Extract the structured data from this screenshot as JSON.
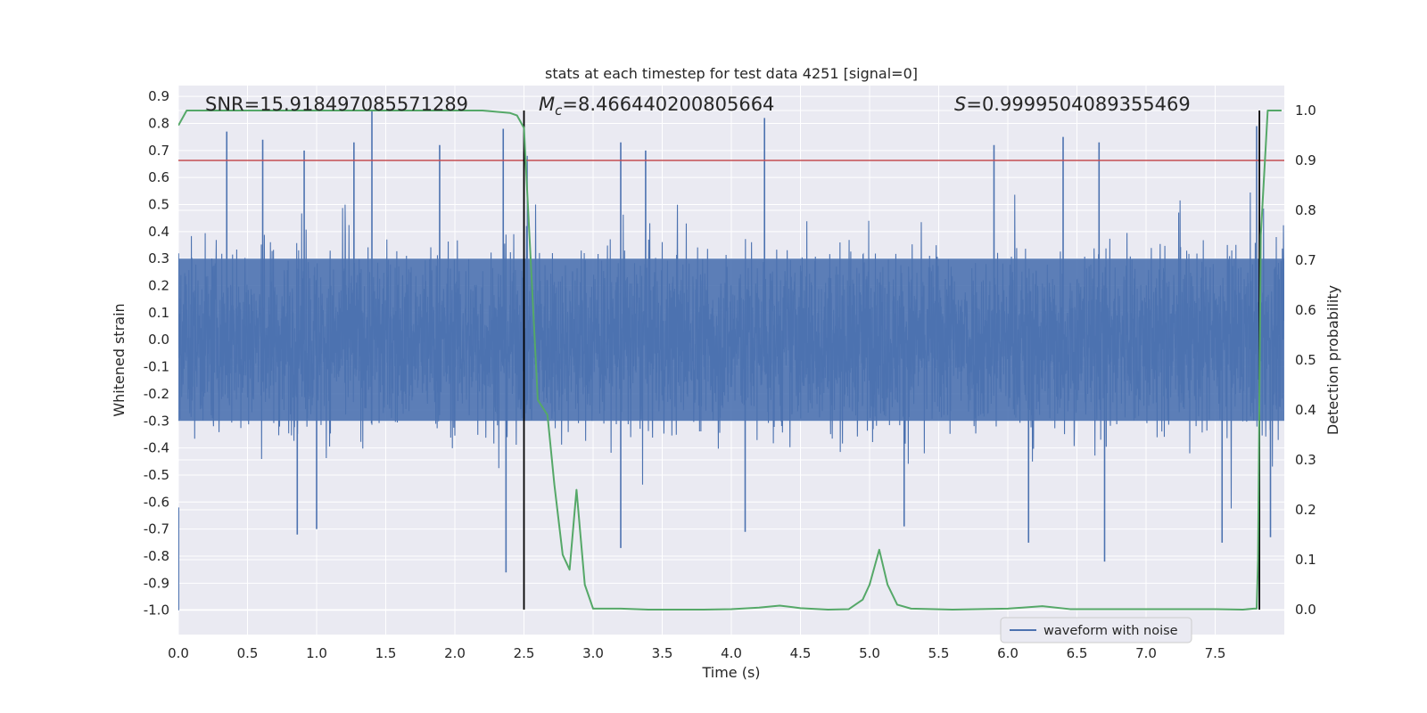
{
  "chart_data": {
    "type": "line",
    "title": "stats at each timestep for test data 4251 [signal=0]",
    "xlabel": "Time (s)",
    "ylabel_left": "Whitened strain",
    "ylabel_right": "Detection probability",
    "xlim": [
      0.0,
      8.0
    ],
    "ylim_left": [
      -1.09,
      0.94
    ],
    "ylim_right": [
      -0.05,
      1.05
    ],
    "x_ticks": [
      "0.0",
      "0.5",
      "1.0",
      "1.5",
      "2.0",
      "2.5",
      "3.0",
      "3.5",
      "4.0",
      "4.5",
      "5.0",
      "5.5",
      "6.0",
      "6.5",
      "7.0",
      "7.5"
    ],
    "y_ticks_left": [
      "0.9",
      "0.8",
      "0.7",
      "0.6",
      "0.5",
      "0.4",
      "0.3",
      "0.2",
      "0.1",
      "0.0",
      "-0.1",
      "-0.2",
      "-0.3",
      "-0.4",
      "-0.5",
      "-0.6",
      "-0.7",
      "-0.8",
      "-0.9",
      "-1.0"
    ],
    "y_ticks_right": [
      "1.0",
      "0.9",
      "0.8",
      "0.7",
      "0.6",
      "0.5",
      "0.4",
      "0.3",
      "0.2",
      "0.1",
      "0.0"
    ],
    "annotations": {
      "snr": "SNR=15.918497085571289",
      "mc_symbol": "M",
      "mc_sub": "c",
      "mc_value": "=8.466440200805664",
      "s_symbol": "S",
      "s_value": "=0.9999504089355469"
    },
    "threshold_probability": 0.9,
    "vertical_markers_s": [
      2.5,
      7.82
    ],
    "legend": [
      "waveform with noise"
    ],
    "series": [
      {
        "name": "waveform with noise",
        "axis": "left",
        "style": "dense noise trace",
        "core_range": [
          -0.3,
          0.3
        ],
        "spikes": [
          {
            "t": 0.35,
            "v": 0.77
          },
          {
            "t": 0.61,
            "v": 0.74
          },
          {
            "t": 0.91,
            "v": 0.7
          },
          {
            "t": 1.27,
            "v": 0.73
          },
          {
            "t": 1.4,
            "v": 0.85
          },
          {
            "t": 1.89,
            "v": 0.72
          },
          {
            "t": 2.35,
            "v": 0.78
          },
          {
            "t": 3.2,
            "v": 0.73
          },
          {
            "t": 3.38,
            "v": 0.7
          },
          {
            "t": 4.24,
            "v": 0.82
          },
          {
            "t": 5.9,
            "v": 0.72
          },
          {
            "t": 6.4,
            "v": 0.75
          },
          {
            "t": 6.66,
            "v": 0.73
          },
          {
            "t": 7.8,
            "v": 0.79
          },
          {
            "t": 0.86,
            "v": -0.72
          },
          {
            "t": 1.0,
            "v": -0.7
          },
          {
            "t": 2.37,
            "v": -0.86
          },
          {
            "t": 3.2,
            "v": -0.77
          },
          {
            "t": 4.1,
            "v": -0.71
          },
          {
            "t": 5.25,
            "v": -0.69
          },
          {
            "t": 6.15,
            "v": -0.75
          },
          {
            "t": 6.7,
            "v": -0.82
          },
          {
            "t": 7.55,
            "v": -0.75
          },
          {
            "t": 7.9,
            "v": -0.73
          }
        ]
      },
      {
        "name": "detection probability",
        "axis": "right",
        "x": [
          0.0,
          0.06,
          0.5,
          1.0,
          1.5,
          2.0,
          2.2,
          2.4,
          2.45,
          2.5,
          2.6,
          2.67,
          2.72,
          2.78,
          2.83,
          2.88,
          2.94,
          3.0,
          3.2,
          3.4,
          3.6,
          3.8,
          4.0,
          4.2,
          4.35,
          4.5,
          4.7,
          4.85,
          4.95,
          5.0,
          5.07,
          5.13,
          5.2,
          5.3,
          5.6,
          6.0,
          6.25,
          6.45,
          7.0,
          7.5,
          7.7,
          7.78,
          7.8,
          7.81,
          7.83,
          7.88,
          7.93,
          7.98
        ],
        "y": [
          0.97,
          1.0,
          1.0,
          1.0,
          1.0,
          1.0,
          1.0,
          0.995,
          0.99,
          0.965,
          0.42,
          0.39,
          0.25,
          0.11,
          0.08,
          0.24,
          0.05,
          0.002,
          0.002,
          0.0,
          0.0,
          0.0,
          0.001,
          0.004,
          0.008,
          0.003,
          0.0,
          0.001,
          0.02,
          0.05,
          0.12,
          0.05,
          0.01,
          0.002,
          0.0,
          0.002,
          0.007,
          0.001,
          0.001,
          0.001,
          0.0,
          0.002,
          0.002,
          0.1,
          0.75,
          1.0,
          1.0,
          1.0
        ]
      }
    ]
  },
  "colors": {
    "figure_bg": "#ffffff",
    "axes_bg": "#eaeaf2",
    "grid": "#ffffff",
    "waveform": "#4c72b0",
    "probability": "#55a868",
    "threshold": "#c44e52",
    "marker": "#000000",
    "text": "#262626"
  }
}
